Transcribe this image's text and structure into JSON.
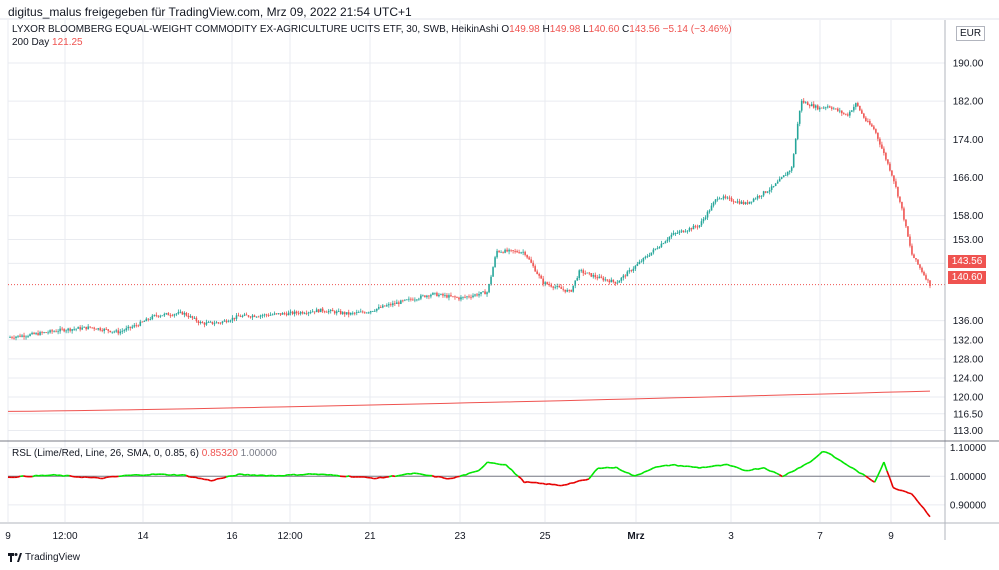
{
  "header": {
    "text": "digitus_malus freigegeben für TradingView.com, Mrz 09, 2022 21:54 UTC+1"
  },
  "legend": {
    "symbol": "LYXOR BLOOMBERG EQUAL-WEIGHT COMMODITY EX-AGRICULTURE UCITS ETF, 30, SWB, HeikinAshi",
    "o_label": "O",
    "o_value": "149.98",
    "h_label": "H",
    "h_value": "149.98",
    "l_label": "L",
    "l_value": "140.60",
    "c_label": "C",
    "c_value": "143.56",
    "change": "−5.14 (−3.46%)",
    "ma_label": "200 Day",
    "ma_value": "121.25"
  },
  "rsi_legend": {
    "label": "RSL (Lime/Red, Line, 26, SMA, 0, 0.85, 6)",
    "value": "0.85320",
    "ref": "1.00000"
  },
  "currency": "EUR",
  "price_tags": {
    "last": "143.56",
    "low": "140.60"
  },
  "footer": {
    "brand": "TradingView"
  },
  "colors": {
    "up": "#26a69a",
    "down": "#ef5350",
    "ma": "#ef5350",
    "rsi_up": "#00e600",
    "rsi_down": "#e60000",
    "grid": "#e9ebf0",
    "ref": "#787b86"
  },
  "chart_data": [
    {
      "type": "candlestick",
      "y_axis_ticks": [
        113.0,
        116.5,
        120.0,
        124.0,
        128.0,
        132.0,
        136.0,
        140.6,
        143.56,
        148.0,
        153.0,
        158.0,
        166.0,
        174.0,
        182.0,
        190.0
      ],
      "ylim": [
        111,
        199
      ],
      "x_tick_labels": [
        "9",
        "12:00",
        "14",
        "16",
        "12:00",
        "21",
        "23",
        "25",
        "Mrz",
        "3",
        "7",
        "9"
      ],
      "last_price_line": 143.56,
      "price_path": [
        [
          0,
          132.5
        ],
        [
          0.03,
          133.2
        ],
        [
          0.06,
          134.1
        ],
        [
          0.09,
          134.6
        ],
        [
          0.12,
          133.6
        ],
        [
          0.14,
          135.1
        ],
        [
          0.16,
          137.1
        ],
        [
          0.19,
          137.6
        ],
        [
          0.21,
          135.4
        ],
        [
          0.23,
          135.6
        ],
        [
          0.25,
          136.9
        ],
        [
          0.28,
          137.2
        ],
        [
          0.31,
          137.6
        ],
        [
          0.34,
          138.2
        ],
        [
          0.37,
          137.4
        ],
        [
          0.39,
          137.9
        ],
        [
          0.41,
          139.1
        ],
        [
          0.44,
          140.6
        ],
        [
          0.46,
          141.6
        ],
        [
          0.49,
          140.7
        ],
        [
          0.52,
          142.0
        ],
        [
          0.53,
          150.6
        ],
        [
          0.56,
          150.4
        ],
        [
          0.58,
          144.0
        ],
        [
          0.61,
          142.0
        ],
        [
          0.62,
          146.4
        ],
        [
          0.64,
          145.0
        ],
        [
          0.66,
          144.0
        ],
        [
          0.69,
          149.0
        ],
        [
          0.72,
          154.0
        ],
        [
          0.75,
          156.0
        ],
        [
          0.77,
          162.0
        ],
        [
          0.8,
          160.5
        ],
        [
          0.83,
          164.0
        ],
        [
          0.85,
          168.0
        ],
        [
          0.86,
          182.0
        ],
        [
          0.88,
          180.5
        ],
        [
          0.89,
          181.0
        ],
        [
          0.91,
          179.0
        ],
        [
          0.92,
          181.5
        ],
        [
          0.93,
          178.0
        ],
        [
          0.94,
          176.0
        ],
        [
          0.95,
          171.0
        ],
        [
          0.96,
          166.0
        ],
        [
          0.97,
          159.0
        ],
        [
          0.98,
          150.0
        ],
        [
          1.0,
          143.56
        ]
      ],
      "ma_series": {
        "name": "200 Day",
        "start": 117.0,
        "end": 121.25
      }
    },
    {
      "type": "line",
      "name": "RSL",
      "y_axis_ticks": [
        0.9,
        1.0,
        1.1
      ],
      "ylim": [
        0.84,
        1.12
      ],
      "reference": 1.0,
      "values": [
        [
          0,
          0.997
        ],
        [
          0.05,
          1.004
        ],
        [
          0.1,
          0.993
        ],
        [
          0.13,
          1.003
        ],
        [
          0.16,
          1.007
        ],
        [
          0.19,
          1.004
        ],
        [
          0.22,
          0.985
        ],
        [
          0.25,
          1.006
        ],
        [
          0.29,
          1.002
        ],
        [
          0.33,
          1.008
        ],
        [
          0.36,
          1.002
        ],
        [
          0.4,
          0.993
        ],
        [
          0.44,
          1.01
        ],
        [
          0.48,
          0.991
        ],
        [
          0.51,
          1.018
        ],
        [
          0.52,
          1.05
        ],
        [
          0.54,
          1.04
        ],
        [
          0.56,
          0.98
        ],
        [
          0.6,
          0.968
        ],
        [
          0.63,
          0.99
        ],
        [
          0.64,
          1.03
        ],
        [
          0.66,
          1.03
        ],
        [
          0.68,
          1.0
        ],
        [
          0.7,
          1.03
        ],
        [
          0.72,
          1.04
        ],
        [
          0.75,
          1.03
        ],
        [
          0.78,
          1.04
        ],
        [
          0.8,
          1.02
        ],
        [
          0.82,
          1.03
        ],
        [
          0.84,
          1.0
        ],
        [
          0.87,
          1.05
        ],
        [
          0.885,
          1.09
        ],
        [
          0.9,
          1.06
        ],
        [
          0.92,
          1.02
        ],
        [
          0.94,
          0.98
        ],
        [
          0.95,
          1.05
        ],
        [
          0.96,
          0.96
        ],
        [
          0.98,
          0.94
        ],
        [
          0.99,
          0.9
        ],
        [
          1.0,
          0.86
        ]
      ]
    }
  ]
}
